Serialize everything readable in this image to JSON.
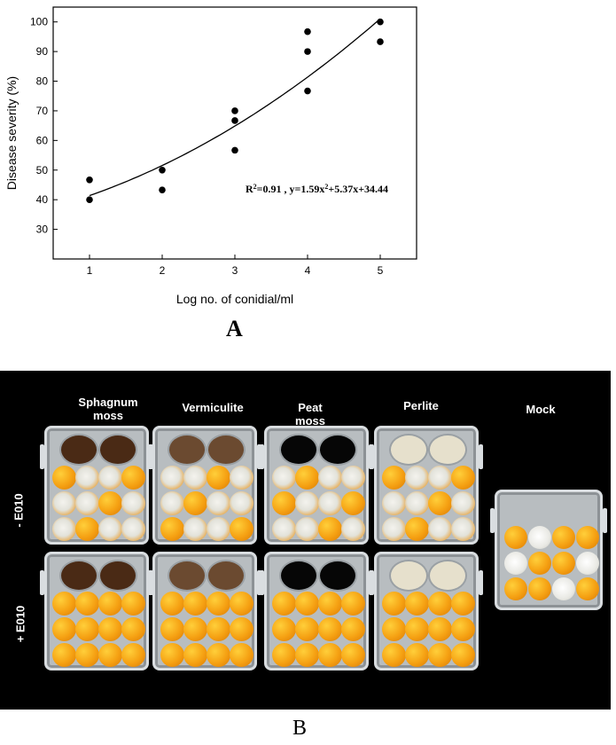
{
  "figure": {
    "panel_a_label": "A",
    "panel_b_label": "B"
  },
  "chart_data": {
    "type": "scatter",
    "xlabel": "Log no. of conidial/ml",
    "ylabel": "Disease severity (%)",
    "xlim": [
      0.5,
      5.5
    ],
    "ylim": [
      20,
      105
    ],
    "xticks": [
      1,
      2,
      3,
      4,
      5
    ],
    "yticks": [
      30,
      40,
      50,
      60,
      70,
      80,
      90,
      100
    ],
    "grid": false,
    "points": [
      {
        "x": 1,
        "y": 46.7
      },
      {
        "x": 1,
        "y": 40
      },
      {
        "x": 2,
        "y": 50
      },
      {
        "x": 2,
        "y": 43.3
      },
      {
        "x": 3,
        "y": 70
      },
      {
        "x": 3,
        "y": 66.7
      },
      {
        "x": 3,
        "y": 56.7
      },
      {
        "x": 4,
        "y": 96.7
      },
      {
        "x": 4,
        "y": 90
      },
      {
        "x": 4,
        "y": 76.7
      },
      {
        "x": 5,
        "y": 100
      },
      {
        "x": 5,
        "y": 93.3
      }
    ],
    "fit": {
      "type": "quadratic",
      "a": 1.59,
      "b": 5.37,
      "c": 34.44,
      "x_range": [
        1,
        5
      ]
    },
    "annotation_prefix": "R",
    "annotation_sup1": "2",
    "annotation_mid": "=0.91 , y=1.59x",
    "annotation_sup2": "2",
    "annotation_suffix": "+5.37x+34.44"
  },
  "photo": {
    "columns": [
      "Sphagnum moss",
      "Vermiculite",
      "Peat moss",
      "Perlite",
      "Mock"
    ],
    "column_line1": [
      "Sphagnum",
      "Vermiculite",
      "Peat",
      "Perlite",
      "Mock"
    ],
    "column_line2": [
      "moss",
      "",
      "moss",
      "",
      ""
    ],
    "rows": [
      "- E010",
      "+ E010"
    ],
    "colors": {
      "background": "#000000",
      "sphagnum": "#4a2a15",
      "vermiculite": "#6b4a30",
      "peat": "#060606",
      "perlite": "#e6e0cc"
    }
  }
}
